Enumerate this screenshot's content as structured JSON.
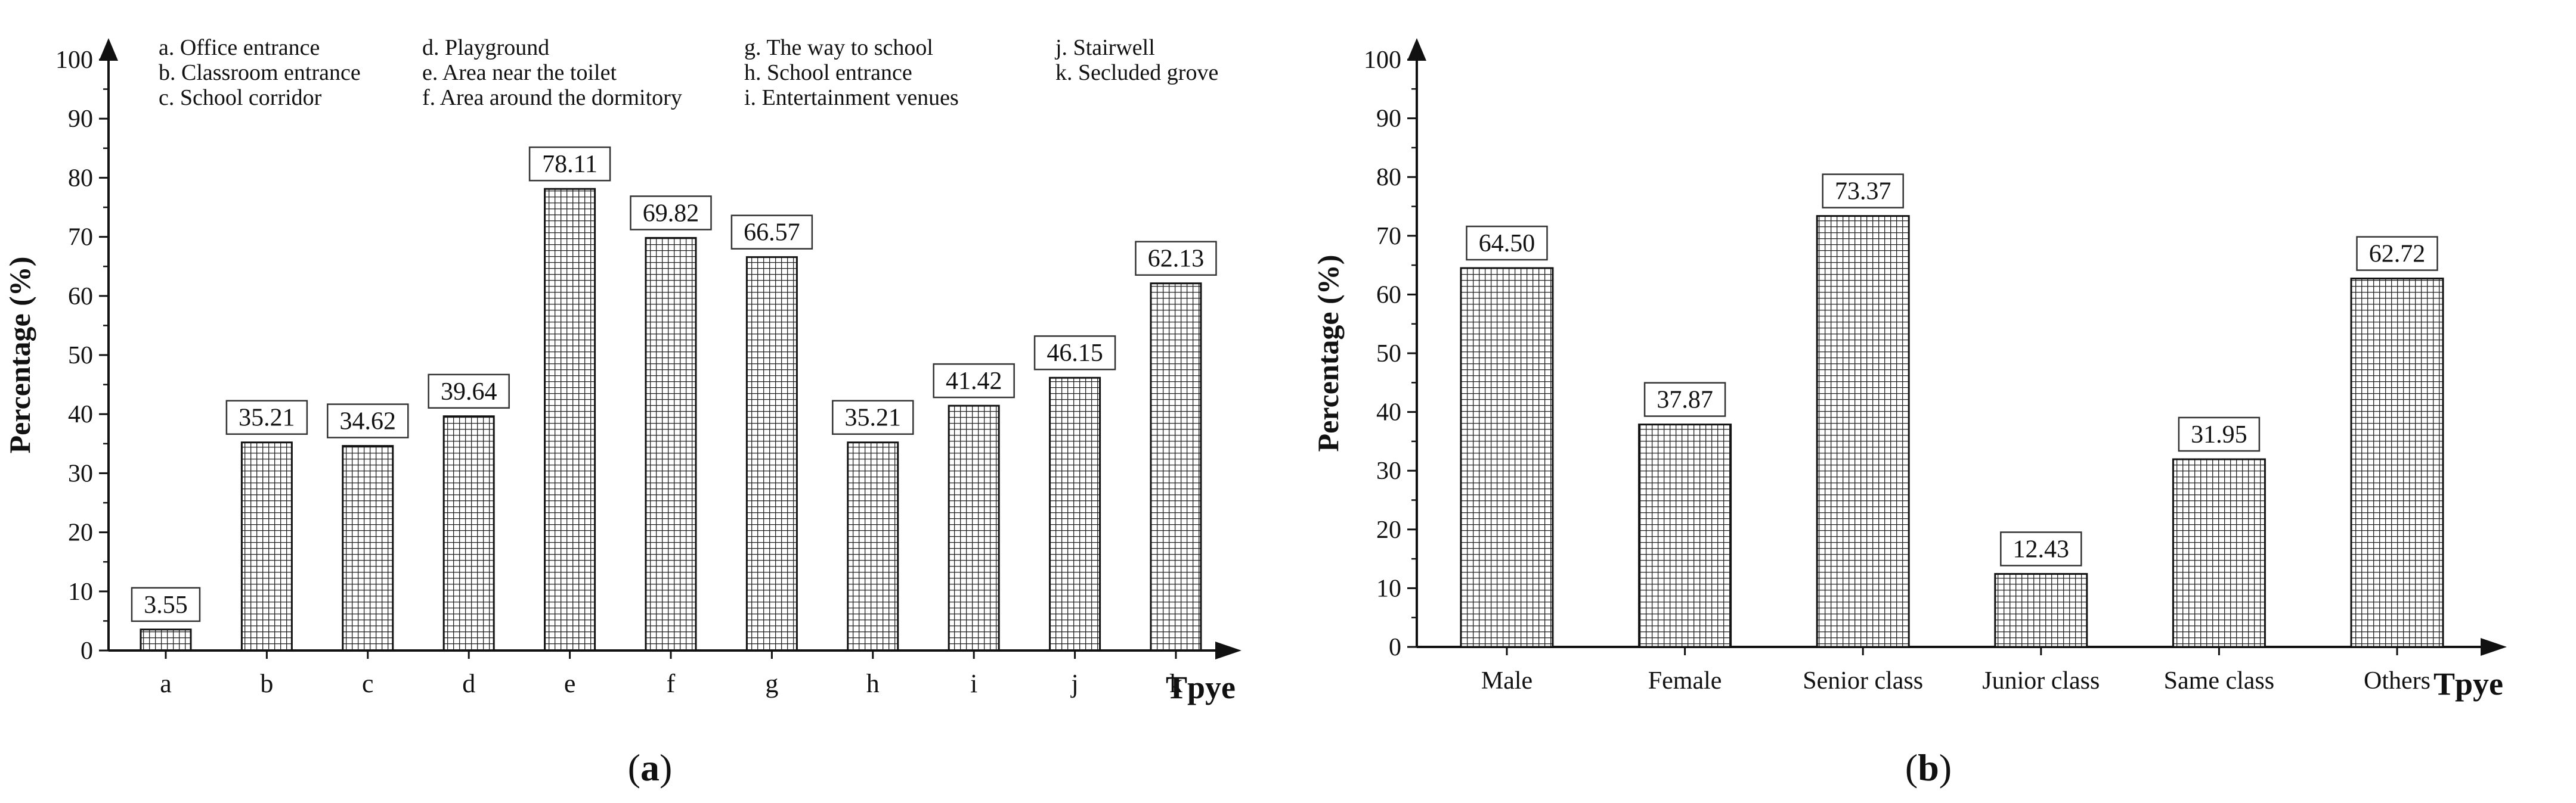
{
  "chart_data": [
    {
      "type": "bar",
      "panel": "a",
      "categories": [
        "a",
        "b",
        "c",
        "d",
        "e",
        "f",
        "g",
        "h",
        "i",
        "j",
        "k"
      ],
      "values": [
        3.55,
        35.21,
        34.62,
        39.64,
        78.11,
        69.82,
        66.57,
        35.21,
        41.42,
        46.15,
        62.13
      ],
      "value_labels": [
        "3.55",
        "35.21",
        "34.62",
        "39.64",
        "78.11",
        "69.82",
        "66.57",
        "35.21",
        "41.42",
        "46.15",
        "62.13"
      ],
      "ylabel": "Percentage (%)",
      "xlabel": "Tpye",
      "ylim": [
        0,
        100
      ],
      "yticks": [
        "0",
        "10",
        "20",
        "30",
        "40",
        "50",
        "60",
        "70",
        "80",
        "90",
        "100"
      ],
      "legend": [
        {
          "key": "a.",
          "text": "Office entrance"
        },
        {
          "key": "b.",
          "text": "Classroom entrance"
        },
        {
          "key": "c.",
          "text": "School corridor"
        },
        {
          "key": "d.",
          "text": "Playground"
        },
        {
          "key": "e.",
          "text": "Area near the toilet"
        },
        {
          "key": "f.",
          "text": "Area around the dormitory"
        },
        {
          "key": "g.",
          "text": "The way to school"
        },
        {
          "key": "h.",
          "text": "School entrance"
        },
        {
          "key": "i.",
          "text": "Entertainment venues"
        },
        {
          "key": "j.",
          "text": "Stairwell"
        },
        {
          "key": "k.",
          "text": "Secluded grove"
        }
      ],
      "grid": false,
      "bar_fill": "crosshatch"
    },
    {
      "type": "bar",
      "panel": "b",
      "categories": [
        "Male",
        "Female",
        "Senior class",
        "Junior class",
        "Same class",
        "Others"
      ],
      "values": [
        64.5,
        37.87,
        73.37,
        12.43,
        31.95,
        62.72
      ],
      "value_labels": [
        "64.50",
        "37.87",
        "73.37",
        "12.43",
        "31.95",
        "62.72"
      ],
      "ylabel": "Percentage (%)",
      "xlabel": "Tpye",
      "ylim": [
        0,
        100
      ],
      "yticks": [
        "0",
        "10",
        "20",
        "30",
        "40",
        "50",
        "60",
        "70",
        "80",
        "90",
        "100"
      ],
      "grid": false,
      "bar_fill": "crosshatch"
    }
  ],
  "captions": {
    "a": {
      "open": "(",
      "letter": "a",
      "close": ")"
    },
    "b": {
      "open": "(",
      "letter": "b",
      "close": ")"
    }
  },
  "colors": {
    "ink": "#111111",
    "background": "#ffffff"
  }
}
